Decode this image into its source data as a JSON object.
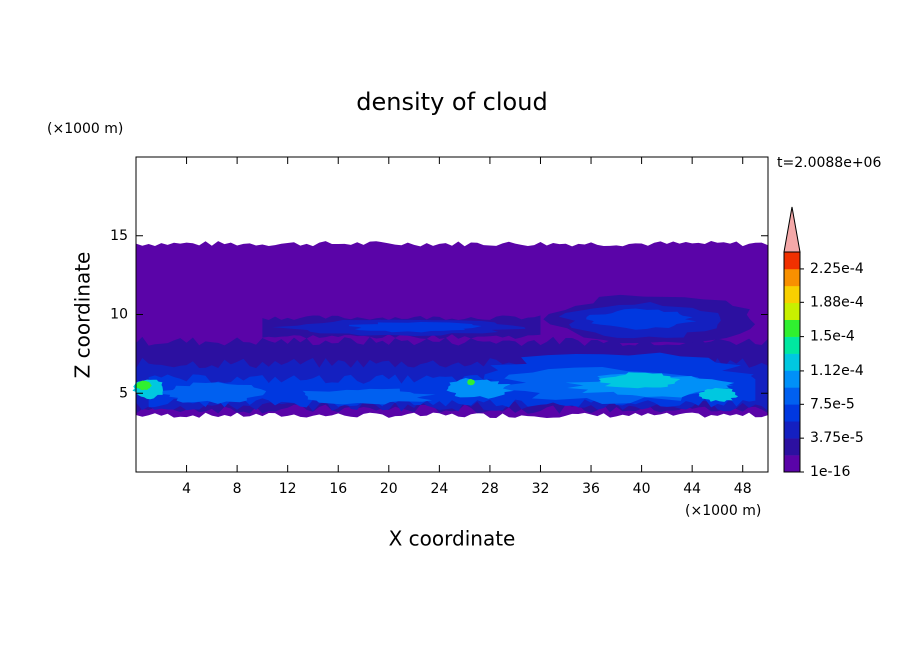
{
  "chart_data": {
    "type": "contour",
    "title": "density of cloud",
    "xlabel": "X coordinate",
    "ylabel": "Z coordinate",
    "x_unit": "(×1000 m)",
    "y_unit": "(×1000 m)",
    "annotation": "t=2.0088e+06",
    "xlim": [
      0,
      50
    ],
    "xticks": [
      4,
      8,
      12,
      16,
      20,
      24,
      28,
      32,
      36,
      40,
      44,
      48
    ],
    "ylim": [
      0,
      20
    ],
    "yticks": [
      5,
      10,
      15
    ],
    "colorbar": {
      "clim": [
        1e-16,
        0.00024375
      ],
      "ticks": [
        {
          "value": 1e-16,
          "label": "1e-16"
        },
        {
          "value": 3.75e-05,
          "label": "3.75e-5"
        },
        {
          "value": 7.5e-05,
          "label": "7.5e-5"
        },
        {
          "value": 0.000112,
          "label": "1.12e-4"
        },
        {
          "value": 0.00015,
          "label": "1.5e-4"
        },
        {
          "value": 0.000188,
          "label": "1.88e-4"
        },
        {
          "value": 0.000225,
          "label": "2.25e-4"
        }
      ],
      "colors": [
        "#5a04a8",
        "#2c10a0",
        "#1420c0",
        "#0038e0",
        "#0060f0",
        "#0090f8",
        "#00c8e0",
        "#00e8a0",
        "#30f030",
        "#c8f000",
        "#f8d000",
        "#f89000",
        "#f03000"
      ],
      "extend_color": "#f4a8a8"
    }
  }
}
